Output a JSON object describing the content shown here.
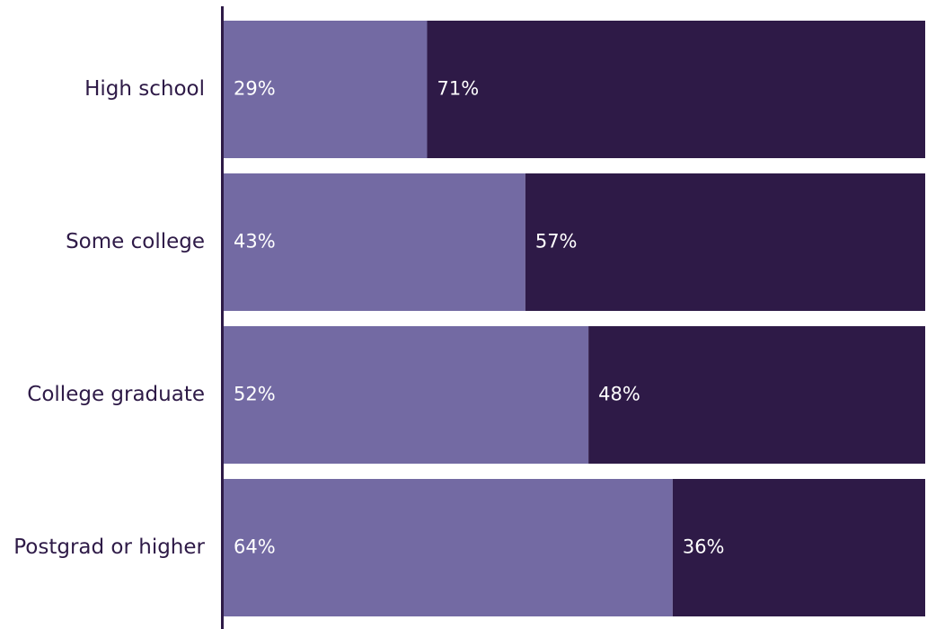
{
  "chart_data": {
    "type": "bar",
    "orientation": "horizontal",
    "stacked": true,
    "categories": [
      "High school",
      "Some college",
      "College graduate",
      "Postgrad or higher"
    ],
    "series": [
      {
        "values": [
          29,
          43,
          52,
          64
        ],
        "labels": [
          "29%",
          "43%",
          "52%",
          "64%"
        ],
        "color": "#736aa3"
      },
      {
        "values": [
          71,
          57,
          48,
          36
        ],
        "labels": [
          "71%",
          "57%",
          "48%",
          "36%"
        ],
        "color": "#2e1a47"
      }
    ],
    "xlim": [
      0,
      100
    ],
    "unit": "%",
    "legend": "none",
    "grid": false,
    "axis_color": "#2e1a47"
  }
}
